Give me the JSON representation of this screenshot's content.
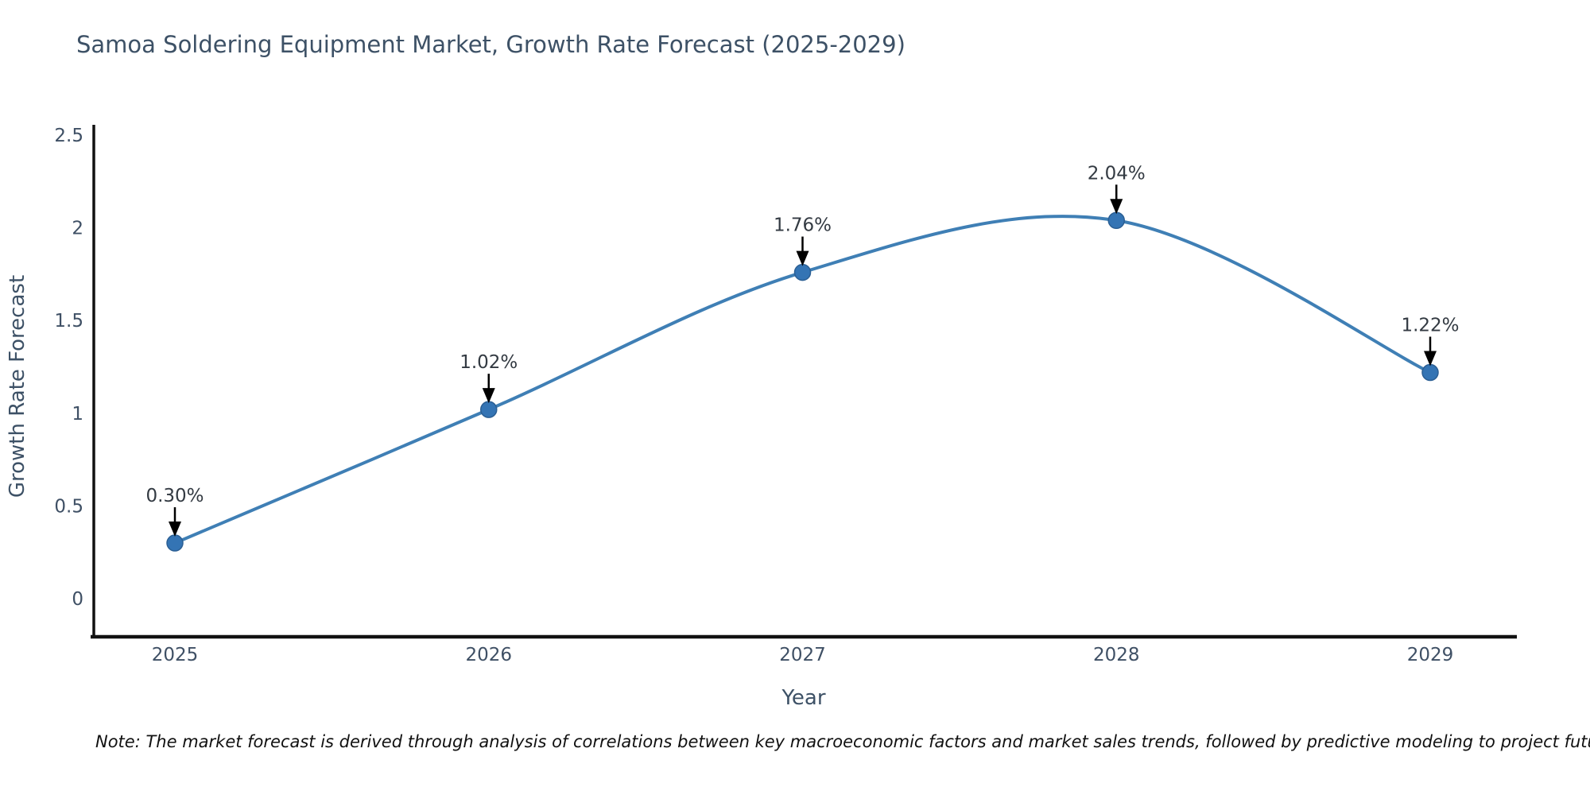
{
  "chart_data": {
    "type": "line",
    "line_shape": "spline",
    "title": "Samoa Soldering Equipment Market, Growth Rate Forecast (2025-2029)",
    "xlabel": "Year",
    "ylabel": "Growth Rate Forecast",
    "categories": [
      "2025",
      "2026",
      "2027",
      "2028",
      "2029"
    ],
    "values": [
      0.3,
      1.02,
      1.76,
      2.04,
      1.22
    ],
    "point_labels": [
      "0.30%",
      "1.02%",
      "1.76%",
      "2.04%",
      "1.22%"
    ],
    "yticks": [
      0,
      0.5,
      1,
      1.5,
      2,
      2.5
    ],
    "ytick_labels": [
      "0",
      "0.5",
      "1",
      "1.5",
      "2",
      "2.5"
    ],
    "ylim": [
      0,
      2.5
    ],
    "grid": false,
    "legend": "none",
    "colors": {
      "line": "#3f7fb5",
      "marker_fill": "#3474b4",
      "marker_edge": "#2b5f94",
      "axis": "#111111",
      "annotation_arrow": "#000000",
      "text": "#3d5166",
      "annotation_text": "#333a42"
    }
  },
  "note": "Note: The market forecast is derived through analysis of correlations between key macroeconomic factors and market sales trends, followed by predictive modeling to project future sales"
}
